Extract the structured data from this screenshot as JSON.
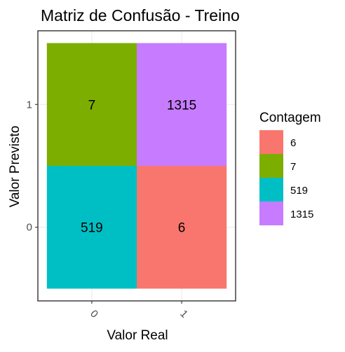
{
  "chart_data": {
    "type": "heatmap",
    "title": "Matriz de Confusão - Treino",
    "xlabel": "Valor Real",
    "ylabel": "Valor Previsto",
    "x_categories": [
      "0",
      "1"
    ],
    "y_categories": [
      "0",
      "1"
    ],
    "cells": [
      {
        "x": "0",
        "y": "1",
        "value": 7,
        "label": "7",
        "color": "#7CAE00"
      },
      {
        "x": "1",
        "y": "1",
        "value": 1315,
        "label": "1315",
        "color": "#C77CFF"
      },
      {
        "x": "0",
        "y": "0",
        "value": 519,
        "label": "519",
        "color": "#00BFC4"
      },
      {
        "x": "1",
        "y": "0",
        "value": 6,
        "label": "6",
        "color": "#F8766D"
      }
    ],
    "legend": {
      "title": "Contagem",
      "position": "right",
      "entries": [
        {
          "label": "6",
          "color": "#F8766D"
        },
        {
          "label": "7",
          "color": "#7CAE00"
        },
        {
          "label": "519",
          "color": "#00BFC4"
        },
        {
          "label": "1315",
          "color": "#C77CFF"
        }
      ]
    },
    "grid": true
  }
}
